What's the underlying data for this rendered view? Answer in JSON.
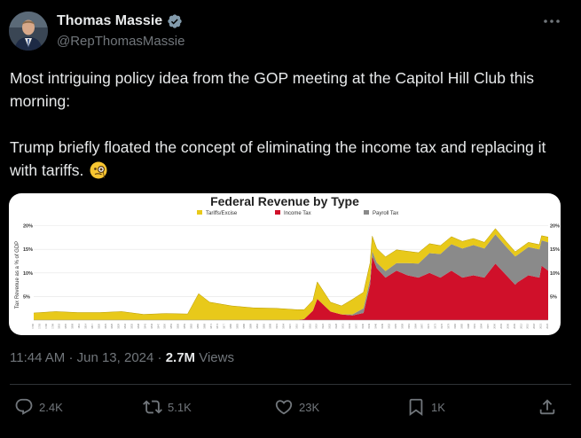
{
  "author": {
    "display_name": "Thomas Massie",
    "handle": "@RepThomasMassie",
    "verified_icon": "verified-badge-icon",
    "more_icon": "more-dots-icon"
  },
  "tweet": {
    "line1": "Most intriguing policy idea from the GOP meeting at the Capitol Hill Club this morning:",
    "line2": "Trump briefly floated the concept of eliminating the income tax and replacing it with tariffs.",
    "emoji": "face-with-monocle-icon"
  },
  "chart_data": {
    "type": "area",
    "title": "Federal Revenue by Type",
    "ylabel": "Tax Revenue as a % of GDP",
    "y_ticks": [
      "5%",
      "10%",
      "15%",
      "20%"
    ],
    "ylim": [
      0,
      22
    ],
    "stacked": true,
    "series": [
      {
        "name": "Tariffs/Excise",
        "color": "#e8c91a"
      },
      {
        "name": "Income Tax",
        "color": "#d0102a"
      },
      {
        "name": "Payroll Tax",
        "color": "#8a8a8a"
      }
    ],
    "x": [
      1790,
      1800,
      1810,
      1820,
      1830,
      1840,
      1850,
      1860,
      1865,
      1870,
      1880,
      1890,
      1900,
      1910,
      1913,
      1917,
      1919,
      1925,
      1930,
      1935,
      1940,
      1943,
      1944,
      1946,
      1950,
      1955,
      1960,
      1965,
      1970,
      1975,
      1980,
      1985,
      1990,
      1995,
      2000,
      2005,
      2009,
      2010,
      2015,
      2020,
      2021,
      2024
    ],
    "tariffs_excise": [
      1.5,
      1.8,
      1.6,
      1.6,
      1.8,
      1.2,
      1.4,
      1.3,
      5.6,
      3.8,
      3.0,
      2.6,
      2.5,
      2.2,
      2.0,
      2.2,
      3.6,
      2.0,
      1.8,
      3.2,
      3.4,
      3.5,
      3.2,
      3.0,
      3.0,
      2.8,
      2.5,
      2.3,
      2.0,
      1.8,
      1.6,
      1.5,
      1.4,
      1.3,
      1.2,
      1.1,
      1.0,
      1.0,
      1.0,
      1.0,
      1.0,
      1.1
    ],
    "income_tax": [
      0,
      0,
      0,
      0,
      0,
      0,
      0,
      0,
      0,
      0,
      0,
      0,
      0,
      0,
      0.2,
      2.0,
      4.5,
      1.8,
      1.2,
      1.0,
      1.5,
      7.5,
      13.5,
      11.0,
      9.0,
      10.5,
      9.5,
      9.0,
      10.0,
      9.0,
      10.5,
      9.0,
      9.5,
      9.0,
      12.0,
      9.5,
      7.5,
      8.0,
      9.5,
      9.0,
      11.5,
      10.5
    ],
    "payroll_tax": [
      0,
      0,
      0,
      0,
      0,
      0,
      0,
      0,
      0,
      0,
      0,
      0,
      0,
      0,
      0,
      0,
      0,
      0,
      0,
      0.2,
      1.0,
      1.1,
      1.1,
      1.2,
      1.4,
      1.6,
      2.6,
      3.0,
      4.2,
      5.0,
      5.6,
      6.2,
      6.4,
      6.2,
      6.2,
      6.0,
      6.0,
      5.8,
      6.0,
      6.0,
      5.4,
      6.0
    ]
  },
  "meta": {
    "time": "11:44 AM",
    "separator": "·",
    "date": "Jun 13, 2024",
    "views_count": "2.7M",
    "views_label": "Views"
  },
  "actions": {
    "reply": {
      "icon": "reply-icon",
      "count": "2.4K"
    },
    "retweet": {
      "icon": "retweet-icon",
      "count": "5.1K"
    },
    "like": {
      "icon": "heart-icon",
      "count": "23K"
    },
    "bookmark": {
      "icon": "bookmark-icon",
      "count": "1K"
    },
    "share": {
      "icon": "share-icon"
    }
  },
  "colors": {
    "background": "#000000",
    "text": "#e7e9ea",
    "muted": "#71767b",
    "verified": "#829aab",
    "divider": "#2f3336"
  }
}
